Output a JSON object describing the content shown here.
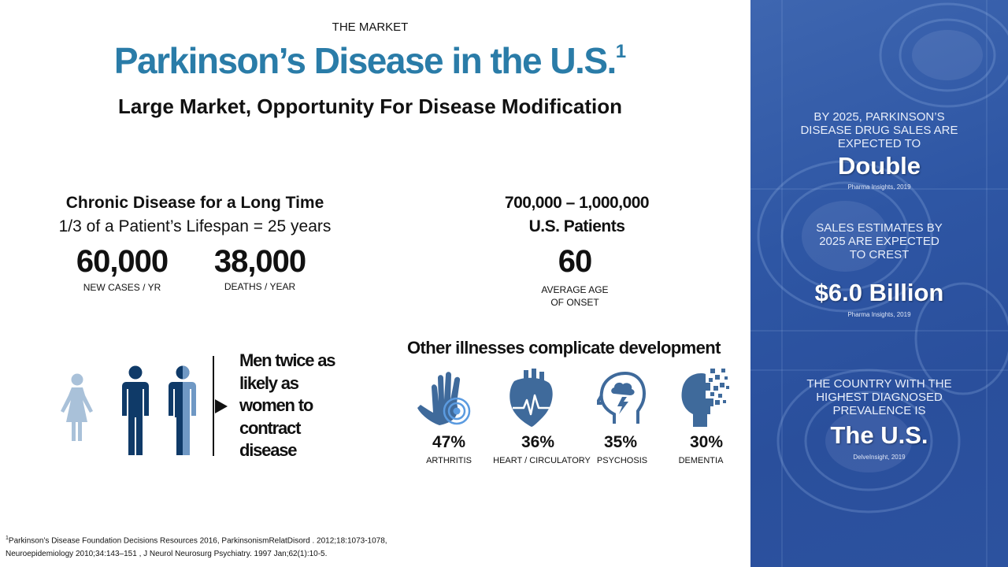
{
  "header": {
    "kicker": "THE MARKET",
    "title": "Parkinson’s Disease in the U.S.",
    "title_sup": "1",
    "subtitle": "Large Market, Opportunity For Disease Modification"
  },
  "chronic": {
    "heading": "Chronic Disease for a Long Time",
    "detail": "1/3 of a Patient’s Lifespan = 25 years",
    "stats": [
      {
        "value": "60,000",
        "label": "NEW CASES / YR"
      },
      {
        "value": "38,000",
        "label": "DEATHS / YEAR"
      }
    ]
  },
  "patients": {
    "range": "700,000 – 1,000,000",
    "label": "U.S. Patients",
    "age_value": "60",
    "age_label_1": "AVERAGE AGE",
    "age_label_2": "OF ONSET"
  },
  "gender": {
    "text_lines": [
      "Men twice as",
      "likely as",
      "women to",
      "contract",
      "disease"
    ],
    "colors": {
      "woman": "#a9c1d9",
      "man": "#0f3a68",
      "man_split_light": "#6f98c4"
    }
  },
  "illnesses": {
    "heading": "Other illnesses complicate development",
    "items": [
      {
        "pct": "47%",
        "label": "ARTHRITIS",
        "icon": "hand-joint-icon"
      },
      {
        "pct": "36%",
        "label": "HEART / CIRCULATORY",
        "icon": "heart-icon"
      },
      {
        "pct": "35%",
        "label": "PSYCHOSIS",
        "icon": "head-storm-icon"
      },
      {
        "pct": "30%",
        "label": "DEMENTIA",
        "icon": "head-pixel-icon"
      }
    ],
    "icon_color": "#3f6a9b"
  },
  "footnote": {
    "sup": "1",
    "line1": "Parkinson’s Disease Foundation Decisions Resources 2016,  ParkinsonismRelatDisord . 2012;18:1073-1078,",
    "line2": "Neuroepidemiology 2010;34:143–151 , J Neurol Neurosurg Psychiatry. 1997 Jan;62(1):10-5."
  },
  "panel": {
    "block1": {
      "lines": [
        "BY 2025, PARKINSON’S",
        "DISEASE DRUG SALES ARE",
        "EXPECTED TO"
      ],
      "big": "Double",
      "source": "Pharma Insights, 2019"
    },
    "block2": {
      "lines": [
        "SALES ESTIMATES BY",
        "2025 ARE EXPECTED",
        "TO CREST"
      ],
      "big": "$6.0 Billion",
      "source": "Pharma Insights, 2019"
    },
    "block3": {
      "lines": [
        "THE COUNTRY WITH THE",
        "HIGHEST DIAGNOSED",
        "PREVALENCE IS"
      ],
      "big": "The U.S.",
      "source": "DelveInsight, 2019"
    },
    "colors": {
      "base": "#2e56a4"
    }
  }
}
